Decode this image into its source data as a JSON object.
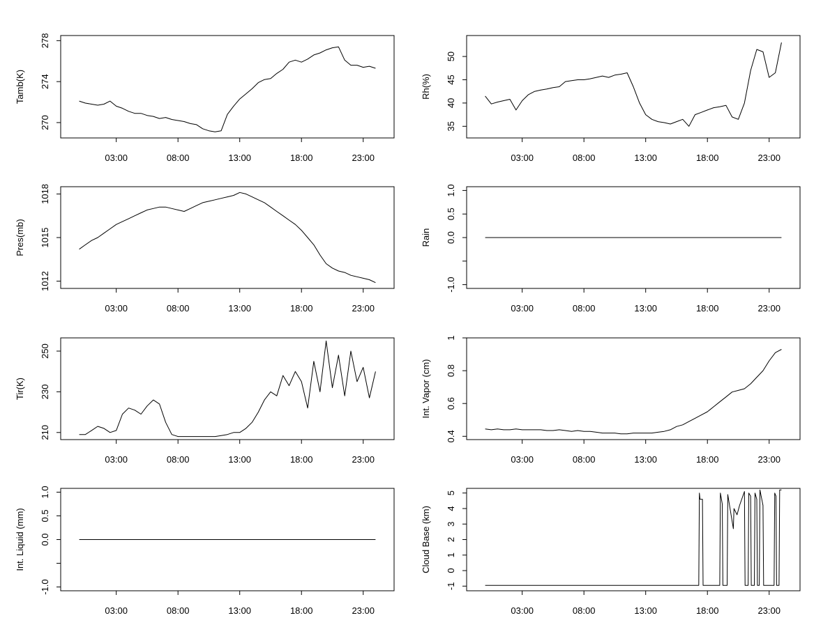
{
  "chart_data": [
    {
      "type": "line",
      "ylabel": "Tamb(K)",
      "xticks": [
        "03:00",
        "08:00",
        "13:00",
        "18:00",
        "23:00"
      ],
      "xlim_hours": [
        -1.5,
        25.5
      ],
      "ylim": [
        268.5,
        278.5
      ],
      "yticks": [
        270,
        274,
        278
      ],
      "x_hours": [
        0,
        0.5,
        1,
        1.5,
        2,
        2.5,
        3,
        3.5,
        4,
        4.5,
        5,
        5.5,
        6,
        6.5,
        7,
        7.5,
        8,
        8.5,
        9,
        9.5,
        10,
        10.5,
        11,
        11.5,
        12,
        12.5,
        13,
        13.5,
        14,
        14.5,
        15,
        15.5,
        16,
        16.5,
        17,
        17.5,
        18,
        18.5,
        19,
        19.5,
        20,
        20.5,
        21,
        21.5,
        22,
        22.5,
        23,
        23.5,
        24
      ],
      "values": [
        272.1,
        271.9,
        271.8,
        271.7,
        271.8,
        272.1,
        271.6,
        271.4,
        271.1,
        270.9,
        270.9,
        270.7,
        270.6,
        270.4,
        270.5,
        270.3,
        270.2,
        270.1,
        269.9,
        269.8,
        269.4,
        269.2,
        269.1,
        269.2,
        270.8,
        271.6,
        272.3,
        272.8,
        273.3,
        273.9,
        274.2,
        274.3,
        274.8,
        275.2,
        275.9,
        276.1,
        275.9,
        276.2,
        276.6,
        276.8,
        277.1,
        277.3,
        277.4,
        276.1,
        275.6,
        275.6,
        275.4,
        275.5,
        275.3
      ]
    },
    {
      "type": "line",
      "ylabel": "Rh(%)",
      "xticks": [
        "03:00",
        "08:00",
        "13:00",
        "18:00",
        "23:00"
      ],
      "xlim_hours": [
        -1.5,
        25.5
      ],
      "ylim": [
        32.5,
        54.5
      ],
      "yticks": [
        35,
        40,
        45,
        50
      ],
      "x_hours": [
        0,
        0.5,
        1,
        1.5,
        2,
        2.5,
        3,
        3.5,
        4,
        4.5,
        5,
        5.5,
        6,
        6.5,
        7,
        7.5,
        8,
        8.5,
        9,
        9.5,
        10,
        10.5,
        11,
        11.5,
        12,
        12.5,
        13,
        13.5,
        14,
        14.5,
        15,
        15.5,
        16,
        16.5,
        17,
        17.5,
        18,
        18.5,
        19,
        19.5,
        20,
        20.5,
        21,
        21.5,
        22,
        22.5,
        23,
        23.5,
        24
      ],
      "values": [
        41.5,
        39.8,
        40.2,
        40.5,
        40.8,
        38.5,
        40.5,
        41.8,
        42.5,
        42.8,
        43.0,
        43.3,
        43.5,
        44.6,
        44.8,
        45.0,
        45.0,
        45.2,
        45.5,
        45.8,
        45.5,
        46.0,
        46.2,
        46.5,
        43.5,
        40.0,
        37.5,
        36.5,
        36.0,
        35.8,
        35.5,
        36.0,
        36.5,
        35.0,
        37.5,
        38.0,
        38.5,
        39.0,
        39.2,
        39.5,
        37.0,
        36.5,
        40.0,
        47.0,
        51.5,
        51.0,
        45.5,
        46.5,
        53.0
      ]
    },
    {
      "type": "line",
      "ylabel": "Pres(mb)",
      "xticks": [
        "03:00",
        "08:00",
        "13:00",
        "18:00",
        "23:00"
      ],
      "xlim_hours": [
        -1.5,
        25.5
      ],
      "ylim": [
        1011.5,
        1018.5
      ],
      "yticks": [
        1012,
        1015,
        1018
      ],
      "x_hours": [
        0,
        0.5,
        1,
        1.5,
        2,
        2.5,
        3,
        3.5,
        4,
        4.5,
        5,
        5.5,
        6,
        6.5,
        7,
        7.5,
        8,
        8.5,
        9,
        9.5,
        10,
        10.5,
        11,
        11.5,
        12,
        12.5,
        13,
        13.5,
        14,
        14.5,
        15,
        15.5,
        16,
        16.5,
        17,
        17.5,
        18,
        18.5,
        19,
        19.5,
        20,
        20.5,
        21,
        21.5,
        22,
        22.5,
        23,
        23.5,
        24
      ],
      "values": [
        1014.2,
        1014.5,
        1014.8,
        1015.0,
        1015.3,
        1015.6,
        1015.9,
        1016.1,
        1016.3,
        1016.5,
        1016.7,
        1016.9,
        1017.0,
        1017.1,
        1017.1,
        1017.0,
        1016.9,
        1016.8,
        1017.0,
        1017.2,
        1017.4,
        1017.5,
        1017.6,
        1017.7,
        1017.8,
        1017.9,
        1018.1,
        1018.0,
        1017.8,
        1017.6,
        1017.4,
        1017.1,
        1016.8,
        1016.5,
        1016.2,
        1015.9,
        1015.5,
        1015.0,
        1014.5,
        1013.8,
        1013.2,
        1012.9,
        1012.7,
        1012.6,
        1012.4,
        1012.3,
        1012.2,
        1012.1,
        1011.9
      ]
    },
    {
      "type": "line",
      "ylabel": "Rain",
      "xticks": [
        "03:00",
        "08:00",
        "13:00",
        "18:00",
        "23:00"
      ],
      "xlim_hours": [
        -1.5,
        25.5
      ],
      "ylim": [
        -1.08,
        1.08
      ],
      "yticks": [
        -1.0,
        -0.5,
        0.0,
        0.5,
        1.0
      ],
      "ytick_labels": [
        "-1.0",
        "",
        "0.0",
        "0.5",
        "1.0"
      ],
      "x_hours": [
        0,
        24
      ],
      "values": [
        0,
        0
      ]
    },
    {
      "type": "line",
      "ylabel": "Tir(K)",
      "xticks": [
        "03:00",
        "08:00",
        "13:00",
        "18:00",
        "23:00"
      ],
      "xlim_hours": [
        -1.5,
        25.5
      ],
      "ylim": [
        206.5,
        256.5
      ],
      "yticks": [
        210,
        230,
        250
      ],
      "x_hours": [
        0,
        0.5,
        1,
        1.5,
        2,
        2.5,
        3,
        3.5,
        4,
        4.5,
        5,
        5.5,
        6,
        6.5,
        7,
        7.5,
        8,
        8.5,
        9,
        9.5,
        10,
        10.5,
        11,
        11.5,
        12,
        12.5,
        13,
        13.5,
        14,
        14.5,
        15,
        15.5,
        16,
        16.5,
        17,
        17.5,
        18,
        18.5,
        19,
        19.5,
        20,
        20.5,
        21,
        21.5,
        22,
        22.5,
        23,
        23.5,
        24
      ],
      "values": [
        209,
        209,
        211,
        213,
        212,
        210,
        211,
        219,
        222,
        221,
        219,
        223,
        226,
        224,
        215,
        209,
        208,
        208,
        208,
        208,
        208,
        208,
        208,
        208.5,
        209,
        210,
        210,
        212,
        215,
        220,
        226,
        230,
        228,
        238,
        233,
        240,
        235,
        222,
        245,
        230,
        255,
        232,
        248,
        228,
        250,
        235,
        242,
        227,
        240
      ]
    },
    {
      "type": "line",
      "ylabel": "Int. Vapor (cm)",
      "xticks": [
        "03:00",
        "08:00",
        "13:00",
        "18:00",
        "23:00"
      ],
      "xlim_hours": [
        -1.5,
        25.5
      ],
      "ylim": [
        0.38,
        1.0
      ],
      "yticks": [
        0.4,
        0.6,
        0.8,
        1.0
      ],
      "x_hours": [
        0,
        0.5,
        1,
        1.5,
        2,
        2.5,
        3,
        3.5,
        4,
        4.5,
        5,
        5.5,
        6,
        6.5,
        7,
        7.5,
        8,
        8.5,
        9,
        9.5,
        10,
        10.5,
        11,
        11.5,
        12,
        12.5,
        13,
        13.5,
        14,
        14.5,
        15,
        15.5,
        16,
        16.5,
        17,
        17.5,
        18,
        18.5,
        19,
        19.5,
        20,
        20.5,
        21,
        21.5,
        22,
        22.5,
        23,
        23.5,
        24
      ],
      "values": [
        0.445,
        0.44,
        0.445,
        0.44,
        0.44,
        0.445,
        0.44,
        0.44,
        0.44,
        0.44,
        0.435,
        0.435,
        0.44,
        0.435,
        0.43,
        0.435,
        0.43,
        0.43,
        0.425,
        0.42,
        0.42,
        0.42,
        0.415,
        0.415,
        0.42,
        0.42,
        0.42,
        0.42,
        0.425,
        0.43,
        0.44,
        0.46,
        0.47,
        0.49,
        0.51,
        0.53,
        0.55,
        0.58,
        0.61,
        0.64,
        0.67,
        0.68,
        0.69,
        0.72,
        0.76,
        0.8,
        0.86,
        0.91,
        0.93
      ]
    },
    {
      "type": "line",
      "ylabel": "Int. Liquid (mm)",
      "xticks": [
        "03:00",
        "08:00",
        "13:00",
        "18:00",
        "23:00"
      ],
      "xlim_hours": [
        -1.5,
        25.5
      ],
      "ylim": [
        -1.08,
        1.08
      ],
      "yticks": [
        -1.0,
        -0.5,
        0.0,
        0.5,
        1.0
      ],
      "ytick_labels": [
        "-1.0",
        "",
        "0.0",
        "0.5",
        "1.0"
      ],
      "x_hours": [
        0,
        24
      ],
      "values": [
        0,
        0
      ]
    },
    {
      "type": "line",
      "ylabel": "Cloud Base (km)",
      "xticks": [
        "03:00",
        "08:00",
        "13:00",
        "18:00",
        "23:00"
      ],
      "xlim_hours": [
        -1.5,
        25.5
      ],
      "ylim": [
        -1.3,
        5.3
      ],
      "yticks": [
        -1,
        0,
        1,
        2,
        3,
        4,
        5
      ],
      "x_hours": [
        0,
        17.3,
        17.35,
        17.4,
        17.6,
        17.65,
        19.0,
        19.05,
        19.2,
        19.25,
        19.6,
        19.65,
        20.1,
        20.15,
        20.4,
        20.6,
        21.0,
        21.05,
        21.3,
        21.35,
        21.5,
        21.55,
        21.8,
        21.85,
        22.0,
        22.05,
        22.2,
        22.25,
        22.5,
        22.55,
        22.8,
        22.85,
        23.0,
        23.4,
        23.45,
        23.55,
        23.6,
        23.8,
        23.85,
        24
      ],
      "values": [
        -0.95,
        -0.95,
        5.0,
        4.6,
        4.6,
        -0.95,
        -0.95,
        5.0,
        4.3,
        -0.95,
        -0.95,
        4.9,
        2.7,
        4.0,
        3.6,
        4.2,
        5.1,
        -0.95,
        -0.95,
        5.0,
        4.8,
        -0.95,
        -0.95,
        5.0,
        4.6,
        -0.95,
        -0.95,
        5.2,
        4.2,
        -0.95,
        -0.95,
        -0.95,
        -0.95,
        -0.95,
        5.0,
        4.8,
        -0.95,
        -0.95,
        5.2,
        5.2
      ]
    }
  ]
}
